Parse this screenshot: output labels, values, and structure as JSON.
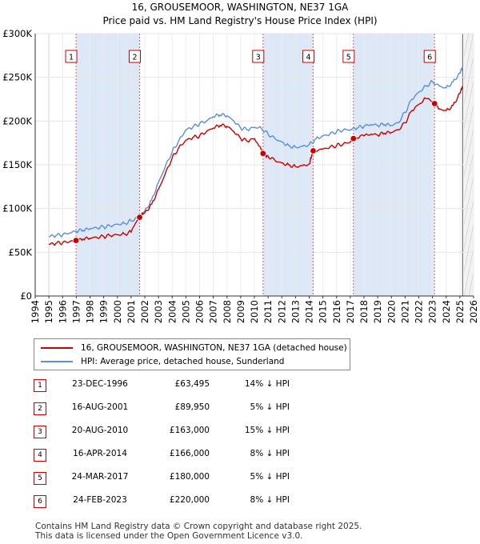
{
  "title_line1": "16, GROUSEMOOR, WASHINGTON, NE37 1GA",
  "title_line2": "Price paid vs. HM Land Registry's House Price Index (HPI)",
  "legend": {
    "property": "16, GROUSEMOOR, WASHINGTON, NE37 1GA (detached house)",
    "hpi": "HPI: Average price, detached house, Sunderland"
  },
  "colors": {
    "property": "#cc0000",
    "hpi": "#5b8fd6",
    "shade": "#dde8f6",
    "marker": "#cc0000"
  },
  "sales": [
    {
      "num": "1",
      "date": "23-DEC-1996",
      "price": "£63,495",
      "hpi": "14% ↓ HPI"
    },
    {
      "num": "2",
      "date": "16-AUG-2001",
      "price": "£89,950",
      "hpi": "5% ↓ HPI"
    },
    {
      "num": "3",
      "date": "20-AUG-2010",
      "price": "£163,000",
      "hpi": "15% ↓ HPI"
    },
    {
      "num": "4",
      "date": "16-APR-2014",
      "price": "£166,000",
      "hpi": "8% ↓ HPI"
    },
    {
      "num": "5",
      "date": "24-MAR-2017",
      "price": "£180,000",
      "hpi": "5% ↓ HPI"
    },
    {
      "num": "6",
      "date": "24-FEB-2023",
      "price": "£220,000",
      "hpi": "8% ↓ HPI"
    }
  ],
  "footer_line1": "Contains HM Land Registry data © Crown copyright and database right 2025.",
  "footer_line2": "This data is licensed under the Open Government Licence v3.0.",
  "chart_data": {
    "type": "line",
    "title": "16, GROUSEMOOR, WASHINGTON, NE37 1GA",
    "subtitle": "Price paid vs. HM Land Registry's House Price Index (HPI)",
    "xlim": [
      1994,
      2026
    ],
    "ylim": [
      0,
      300000
    ],
    "x_ticks": [
      1994,
      1995,
      1996,
      1997,
      1998,
      1999,
      2000,
      2001,
      2002,
      2003,
      2004,
      2005,
      2006,
      2007,
      2008,
      2009,
      2010,
      2011,
      2012,
      2013,
      2014,
      2015,
      2016,
      2017,
      2018,
      2019,
      2020,
      2021,
      2022,
      2023,
      2024,
      2025,
      2026
    ],
    "y_ticks": [
      {
        "value": 0,
        "label": "£0"
      },
      {
        "value": 50000,
        "label": "£50K"
      },
      {
        "value": 100000,
        "label": "£100K"
      },
      {
        "value": 150000,
        "label": "£150K"
      },
      {
        "value": 200000,
        "label": "£200K"
      },
      {
        "value": 250000,
        "label": "£250K"
      },
      {
        "value": 300000,
        "label": "£300K"
      }
    ],
    "data_start": 1995.0,
    "data_end": 2025.2,
    "shaded_periods": [
      [
        1996.98,
        2001.62
      ],
      [
        2010.63,
        2014.29
      ],
      [
        2017.23,
        2023.15
      ]
    ],
    "sale_markers": [
      {
        "label": "1",
        "x": 1996.98,
        "y": 63495
      },
      {
        "label": "2",
        "x": 2001.62,
        "y": 89950
      },
      {
        "label": "3",
        "x": 2010.63,
        "y": 163000
      },
      {
        "label": "4",
        "x": 2014.29,
        "y": 166000
      },
      {
        "label": "5",
        "x": 2017.23,
        "y": 180000
      },
      {
        "label": "6",
        "x": 2023.15,
        "y": 220000
      }
    ],
    "series": [
      {
        "name": "HPI: Average price, detached house, Sunderland",
        "x": [
          1995.0,
          1995.5,
          1996.0,
          1996.5,
          1997.0,
          1997.5,
          1998.0,
          1998.5,
          1999.0,
          1999.5,
          2000.0,
          2000.5,
          2001.0,
          2001.5,
          2002.0,
          2002.5,
          2003.0,
          2003.5,
          2004.0,
          2004.5,
          2005.0,
          2005.5,
          2006.0,
          2006.5,
          2007.0,
          2007.5,
          2008.0,
          2008.5,
          2009.0,
          2009.5,
          2010.0,
          2010.5,
          2011.0,
          2011.5,
          2012.0,
          2012.5,
          2013.0,
          2013.5,
          2014.0,
          2014.5,
          2015.0,
          2015.5,
          2016.0,
          2016.5,
          2017.0,
          2017.5,
          2018.0,
          2018.5,
          2019.0,
          2019.5,
          2020.0,
          2020.5,
          2021.0,
          2021.5,
          2022.0,
          2022.5,
          2023.0,
          2023.5,
          2024.0,
          2024.5,
          2025.0,
          2025.2
        ],
        "values": [
          68000,
          69000,
          70000,
          72000,
          74000,
          75000,
          77000,
          78000,
          79000,
          80000,
          82000,
          83000,
          86000,
          90000,
          97000,
          110000,
          130000,
          148000,
          165000,
          178000,
          190000,
          193000,
          197000,
          200000,
          205000,
          207000,
          206000,
          200000,
          192000,
          190000,
          193000,
          192000,
          185000,
          180000,
          176000,
          172000,
          170000,
          171000,
          173000,
          180000,
          183000,
          185000,
          188000,
          190000,
          190000,
          192000,
          194000,
          196000,
          195000,
          196000,
          195000,
          198000,
          210000,
          225000,
          233000,
          240000,
          245000,
          240000,
          238000,
          245000,
          255000,
          262000
        ]
      },
      {
        "name": "16, GROUSEMOOR, WASHINGTON, NE37 1GA (detached house)",
        "x": [
          1995.0,
          1995.5,
          1996.0,
          1996.5,
          1996.98,
          1997.5,
          1998.0,
          1998.5,
          1999.0,
          1999.5,
          2000.0,
          2000.5,
          2001.0,
          2001.62,
          2002.0,
          2002.5,
          2003.0,
          2003.5,
          2004.0,
          2004.5,
          2005.0,
          2005.5,
          2006.0,
          2006.5,
          2007.0,
          2007.5,
          2008.0,
          2008.5,
          2009.0,
          2009.5,
          2010.0,
          2010.63,
          2011.0,
          2011.5,
          2012.0,
          2012.5,
          2013.0,
          2013.5,
          2014.0,
          2014.29,
          2015.0,
          2015.5,
          2016.0,
          2016.5,
          2017.0,
          2017.23,
          2018.0,
          2018.5,
          2019.0,
          2019.5,
          2020.0,
          2020.5,
          2021.0,
          2021.5,
          2022.0,
          2022.5,
          2023.15,
          2023.5,
          2024.0,
          2024.5,
          2025.0,
          2025.2
        ],
        "values": [
          59000,
          60000,
          61000,
          62000,
          63495,
          65000,
          66000,
          67000,
          68000,
          69000,
          70000,
          71000,
          73000,
          89950,
          95000,
          105000,
          122000,
          140000,
          158000,
          170000,
          178000,
          181000,
          183000,
          188000,
          192000,
          195000,
          194000,
          188000,
          180000,
          177000,
          180000,
          163000,
          160000,
          155000,
          152000,
          150000,
          148000,
          149000,
          151000,
          166000,
          168000,
          170000,
          172000,
          174000,
          176000,
          180000,
          183000,
          185000,
          184000,
          186000,
          187000,
          190000,
          198000,
          212000,
          219000,
          226000,
          220000,
          214000,
          212000,
          218000,
          232000,
          240000
        ]
      }
    ]
  }
}
